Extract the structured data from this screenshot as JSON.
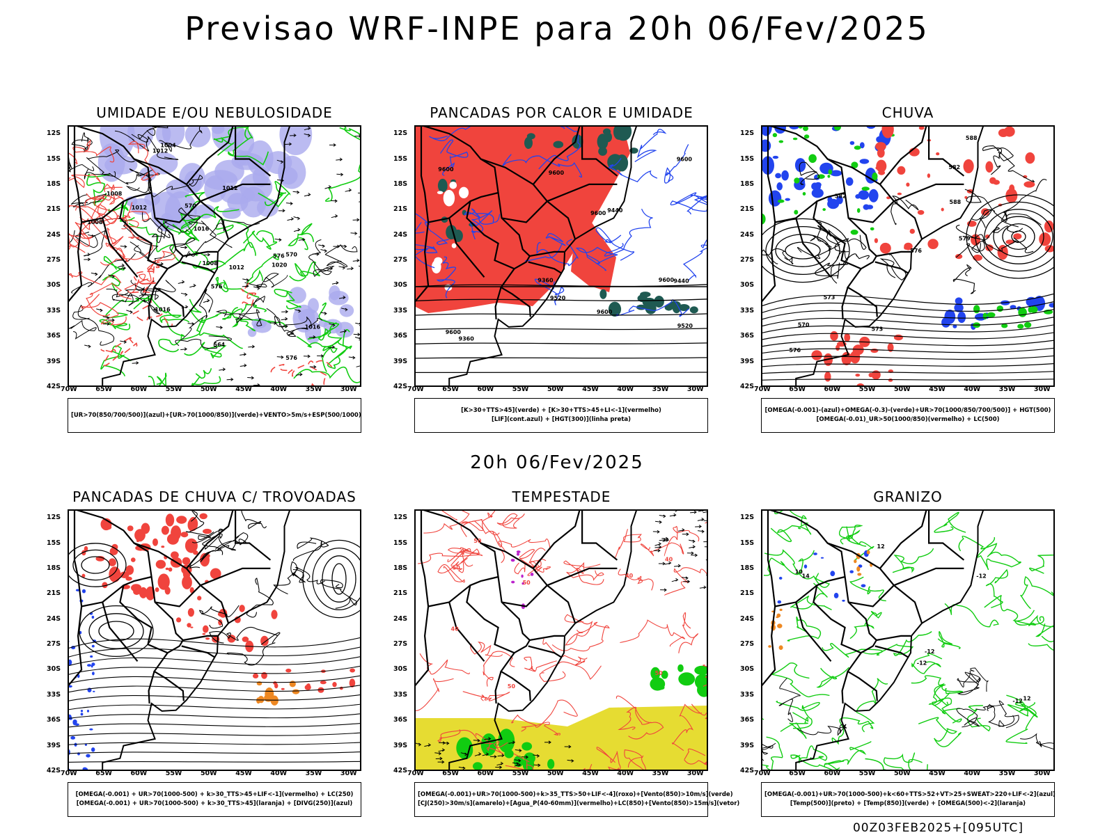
{
  "page": {
    "title": "Previsao WRF-INPE  para 20h 06/Fev/2025",
    "mid_time": "20h 06/Fev/2025",
    "footer": "00Z03FEB2025+[095UTC]"
  },
  "axes": {
    "lat_labels": [
      "12S",
      "15S",
      "18S",
      "21S",
      "24S",
      "27S",
      "30S",
      "33S",
      "36S",
      "39S",
      "42S"
    ],
    "lon_labels": [
      "70W",
      "65W",
      "60W",
      "55W",
      "50W",
      "45W",
      "40W",
      "35W",
      "30W"
    ]
  },
  "panels": [
    {
      "id": "umidade",
      "title": "UMIDADE E/OU NEBULOSIDADE",
      "legend": [
        "[UR>70(850/700/500)](azul)+[UR>70(1000/850)](verde)+VENTO>5m/s+ESP(500/1000)"
      ],
      "contour_labels": [
        "1012",
        "1008",
        "1016",
        "1012",
        "1016",
        "1012",
        "1008",
        "1012",
        "1016",
        "1020",
        "1004",
        "576",
        "576",
        "570",
        "576",
        "564",
        "570",
        "1008"
      ]
    },
    {
      "id": "pancadas-calor",
      "title": "PANCADAS POR CALOR E UMIDADE",
      "legend": [
        "[K>30+TTS>45](verde) + [K>30+TTS>45+LI<-1](vermelho)",
        "[LIF](cont.azul) + [HGT(300)](linha preta)"
      ],
      "contour_labels": [
        "9600",
        "9600",
        "9600",
        "9600",
        "9600",
        "9600",
        "9600",
        "9520",
        "9520",
        "9440",
        "9440",
        "9360",
        "9360"
      ]
    },
    {
      "id": "chuva",
      "title": "CHUVA",
      "legend": [
        "[OMEGA(-0.001)-(azul)+OMEGA(-0.3)-(verde)+UR>70(1000/850/700/500)] + HGT(500)",
        "[OMEGA(-0.01)_UR>50(1000/850)(vermelho) + LC(500)"
      ],
      "contour_labels": [
        "588",
        "582",
        "588",
        "582",
        "576",
        "579",
        "576",
        "573",
        "570",
        "573"
      ]
    },
    {
      "id": "pancadas-trovoadas",
      "title": "PANCADAS DE CHUVA C/ TROVOADAS",
      "legend": [
        "[OMEGA(-0.001) + UR>70(1000-500) + k>30_TTS>45+LIF<-1](vermelho) + LC(250)",
        "[OMEGA(-0.001) + UR>70(1000-500) + k>30_TTS>45](laranja) + [DIVG(250)](azul)"
      ],
      "contour_labels": []
    },
    {
      "id": "tempestade",
      "title": "TEMPESTADE",
      "legend": [
        "[OMEGA(-0.001)+UR>70(1000-500)+k>35_TTS>50+LIF<-4](roxo)+[Vento(850)>10m/s](verde)",
        "[CJ(250)>30m/s](amarelo)+[Agua_P(40-60mm)](vermelho)+LC(850)+[Vento(850)>15m/s](vetor)"
      ],
      "contour_labels": [
        "50",
        "50",
        "40",
        "50",
        "40",
        "50",
        "40",
        "50"
      ]
    },
    {
      "id": "granizo",
      "title": "GRANIZO",
      "legend": [
        "[OMEGA(-0.001)+UR>70(1000-500)+k<60+TTS>52+VT>25+SWEAT>220+LIF<-2](azul)",
        "[Temp(500)](preto) + [Temp(850)](verde) + [OMEGA(500)<-2](laranja)"
      ],
      "contour_labels": [
        "-12",
        "-12",
        "-12",
        "-12",
        "12",
        "12",
        "14",
        "10"
      ]
    }
  ],
  "colors": {
    "red": "#f0443d",
    "green": "#11cc11",
    "blue": "#2244ee",
    "lavender": "#aaaaee",
    "darkteal": "#1f5a52",
    "yellow": "#e6dc32",
    "orange": "#ee8822",
    "purple": "#bb22cc"
  }
}
